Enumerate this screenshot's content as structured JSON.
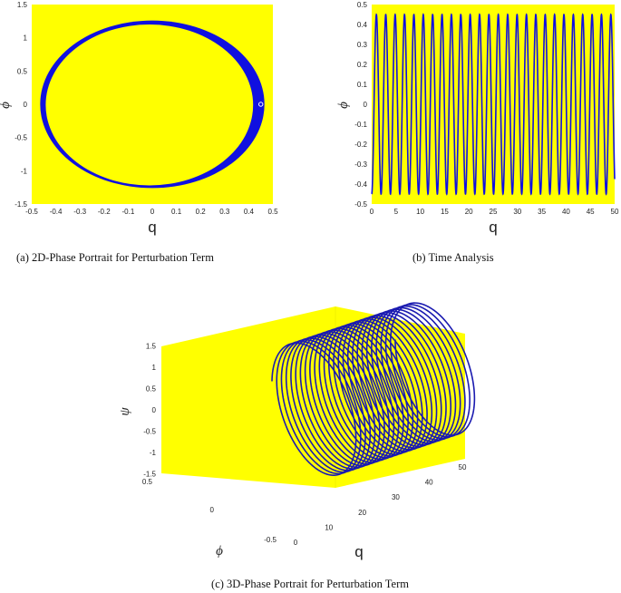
{
  "chart_data": [
    {
      "id": "a",
      "type": "line",
      "caption": "(a)  2D-Phase Portrait for Perturbation Term",
      "xlabel": "q",
      "ylabel": "ϕ",
      "xlim": [
        -0.5,
        0.5
      ],
      "ylim": [
        -1.5,
        1.5
      ],
      "xticks": [
        "-0.5",
        "-0.4",
        "-0.3",
        "-0.2",
        "-0.1",
        "0",
        "0.1",
        "0.2",
        "0.3",
        "0.4",
        "0.5"
      ],
      "yticks": [
        "-1.5",
        "-1",
        "-0.5",
        "0",
        "0.5",
        "1",
        "1.5"
      ],
      "background": "#ffff00",
      "line_color": "#1010e0",
      "series": [
        {
          "shape": "closed-orbit",
          "rx_outer": 0.465,
          "rx_inner": 0.43,
          "ry_outer": 1.26,
          "ry_inner": 1.21,
          "start_marker": [
            0.45,
            0
          ]
        }
      ]
    },
    {
      "id": "b",
      "type": "line",
      "caption": "(b)  Time Analysis",
      "xlabel": "q",
      "ylabel": "ϕ",
      "xlim": [
        0,
        50
      ],
      "ylim": [
        -0.5,
        0.5
      ],
      "xticks": [
        "0",
        "5",
        "10",
        "15",
        "20",
        "25",
        "30",
        "35",
        "40",
        "45",
        "50"
      ],
      "yticks": [
        "-0.5",
        "-0.4",
        "-0.3",
        "-0.2",
        "-0.1",
        "0",
        "0.1",
        "0.2",
        "0.3",
        "0.4",
        "0.5"
      ],
      "background": "#ffff00",
      "line_color": "#1010e0",
      "series": [
        {
          "shape": "sine",
          "amplitude": 0.45,
          "period": 1.93,
          "x_start": 0,
          "x_end": 50
        }
      ]
    },
    {
      "id": "c",
      "type": "line",
      "caption": "(c)  3D-Phase Portrait for Perturbation Term",
      "xlabel": "q",
      "ylabel": "ϕ",
      "zlabel": "ψ",
      "xlim": [
        0,
        50
      ],
      "ylim": [
        -0.5,
        0.5
      ],
      "zlim": [
        -1.5,
        1.5
      ],
      "xticks": [
        "0",
        "10",
        "20",
        "30",
        "40",
        "50"
      ],
      "yticks": [
        "-0.5",
        "0",
        "0.5"
      ],
      "zticks": [
        "-1.5",
        "-1",
        "-0.5",
        "0",
        "0.5",
        "1",
        "1.5"
      ],
      "background": "#ffff00",
      "line_color": "#1a1ab0",
      "series": [
        {
          "shape": "helix",
          "turns": 26,
          "radius_phi": 0.45,
          "radius_psi": 1.25,
          "q_start": 0,
          "q_end": 50
        }
      ]
    }
  ]
}
